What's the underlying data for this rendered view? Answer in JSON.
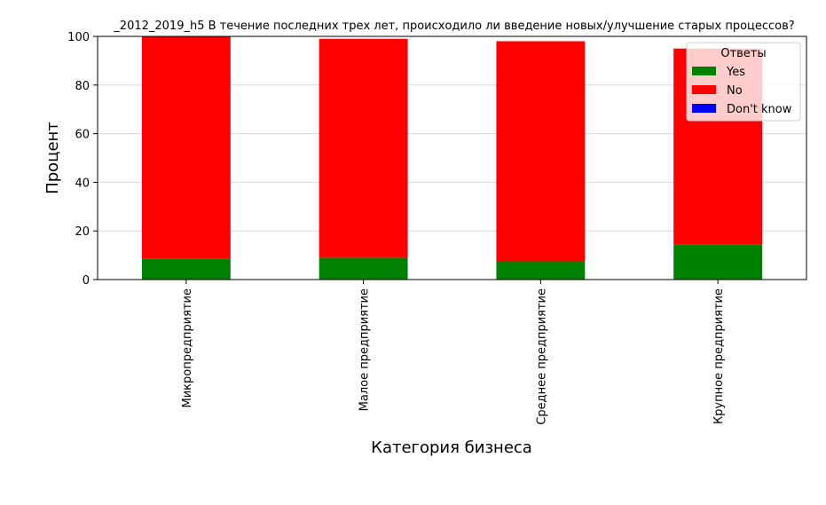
{
  "chart_data": {
    "type": "bar",
    "stacked": true,
    "title": "_2012_2019_h5 В течение последних трех лет, происходило ли введение новых/улучшение старых процессов?",
    "xlabel": "Категория бизнеса",
    "ylabel": "Процент",
    "ylim": [
      0,
      100
    ],
    "yticks": [
      "0",
      "20",
      "40",
      "60",
      "80",
      "100"
    ],
    "grid": "horizontal",
    "categories": [
      "Микропредприятие",
      "Малое предприятие",
      "Среднее предприятие",
      "Крупное предприятие"
    ],
    "series": [
      {
        "name": "Yes",
        "color": "#008000",
        "values": [
          8.5,
          9.0,
          7.5,
          14.5
        ]
      },
      {
        "name": "No",
        "color": "#ff0000",
        "values": [
          91.5,
          90.0,
          90.5,
          80.5
        ]
      },
      {
        "name": "Don't know",
        "color": "#0000ff",
        "values": [
          0,
          0,
          0,
          0
        ]
      }
    ],
    "legend": {
      "title": "Ответы",
      "placement": "top-right"
    }
  }
}
